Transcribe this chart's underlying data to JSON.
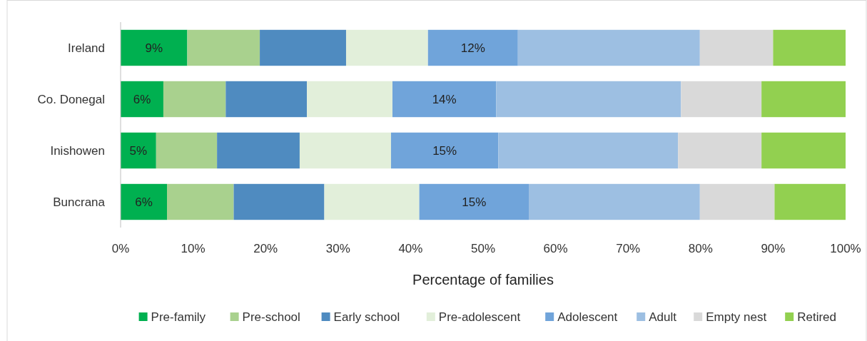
{
  "chart_data": {
    "type": "bar",
    "orientation": "horizontal",
    "stacked": true,
    "xlabel": "Percentage of families",
    "categories": [
      "Ireland",
      "Co. Donegal",
      "Inishowen",
      "Buncrana"
    ],
    "xlim": [
      0,
      100
    ],
    "xticks": [
      {
        "value": 0,
        "label": "0%"
      },
      {
        "value": 10,
        "label": "10%"
      },
      {
        "value": 20,
        "label": "20%"
      },
      {
        "value": 30,
        "label": "30%"
      },
      {
        "value": 40,
        "label": "40%"
      },
      {
        "value": 50,
        "label": "50%"
      },
      {
        "value": 60,
        "label": "60%"
      },
      {
        "value": 70,
        "label": "70%"
      },
      {
        "value": 80,
        "label": "80%"
      },
      {
        "value": 90,
        "label": "90%"
      },
      {
        "value": 100,
        "label": "100%"
      }
    ],
    "legend": "bottom",
    "grid": false,
    "series": [
      {
        "name": "Pre-family",
        "color": "#00b050",
        "values": [
          9.2,
          5.9,
          4.9,
          6.4
        ],
        "value_labels": [
          "9%",
          "6%",
          "5%",
          "6%"
        ]
      },
      {
        "name": "Pre-school",
        "color": "#a9d18e",
        "values": [
          10.0,
          8.6,
          8.4,
          9.2
        ]
      },
      {
        "name": "Early school",
        "color": "#4f8bc0",
        "values": [
          11.9,
          11.2,
          11.4,
          12.5
        ]
      },
      {
        "name": "Pre-adolescent",
        "color": "#e2efda",
        "values": [
          11.3,
          11.8,
          12.6,
          13.1
        ]
      },
      {
        "name": "Adolescent",
        "color": "#70a4da",
        "values": [
          12.4,
          14.3,
          14.8,
          15.1
        ],
        "value_labels": [
          "12%",
          "14%",
          "15%",
          "15%"
        ]
      },
      {
        "name": "Adult",
        "color": "#9dbfe2",
        "values": [
          25.1,
          25.5,
          24.8,
          23.6
        ]
      },
      {
        "name": "Empty nest",
        "color": "#d9d9d9",
        "values": [
          10.1,
          11.1,
          11.5,
          10.3
        ]
      },
      {
        "name": "Retired",
        "color": "#92d050",
        "values": [
          10.0,
          11.6,
          11.6,
          9.8
        ]
      }
    ]
  }
}
